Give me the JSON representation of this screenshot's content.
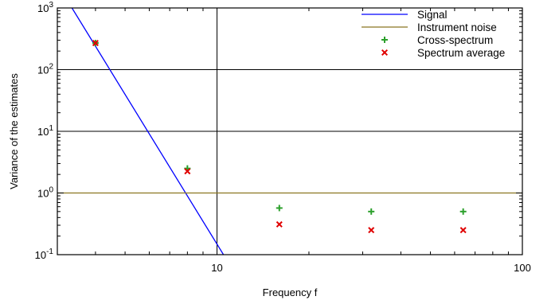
{
  "chart_data": {
    "type": "line",
    "title": "",
    "xlabel": "Frequency f",
    "ylabel": "Variance of the estimates",
    "xscale": "log",
    "yscale": "log",
    "xlim": [
      3,
      100
    ],
    "ylim": [
      0.1,
      1000
    ],
    "x_ticks": [
      {
        "value": 10,
        "label": "10"
      },
      {
        "value": 100,
        "label": "100"
      }
    ],
    "y_ticks": [
      {
        "value": 0.1,
        "base": "10",
        "exp": "-1"
      },
      {
        "value": 1,
        "base": "10",
        "exp": "0"
      },
      {
        "value": 10,
        "base": "10",
        "exp": "1"
      },
      {
        "value": 100,
        "base": "10",
        "exp": "2"
      },
      {
        "value": 1000,
        "base": "10",
        "exp": "3"
      }
    ],
    "grid": "major",
    "legend_position": "top-right",
    "colors": {
      "signal": "#0000ff",
      "noise": "#8b7520",
      "cross": "#2ca02c",
      "average": "#e00000",
      "grid": "#000000"
    },
    "series": [
      {
        "name": "Signal",
        "style": "line",
        "x": [
          3.35,
          10.5
        ],
        "y": [
          1000,
          0.1
        ]
      },
      {
        "name": "Instrument noise",
        "style": "line",
        "x": [
          3,
          100
        ],
        "y": [
          1,
          1
        ]
      },
      {
        "name": "Cross-spectrum",
        "style": "plus",
        "x": [
          4,
          8,
          16,
          32,
          64
        ],
        "y": [
          270,
          2.5,
          0.57,
          0.5,
          0.5
        ]
      },
      {
        "name": "Spectrum average",
        "style": "cross",
        "x": [
          4,
          8,
          16,
          32,
          64
        ],
        "y": [
          270,
          2.25,
          0.31,
          0.25,
          0.25
        ]
      }
    ]
  }
}
